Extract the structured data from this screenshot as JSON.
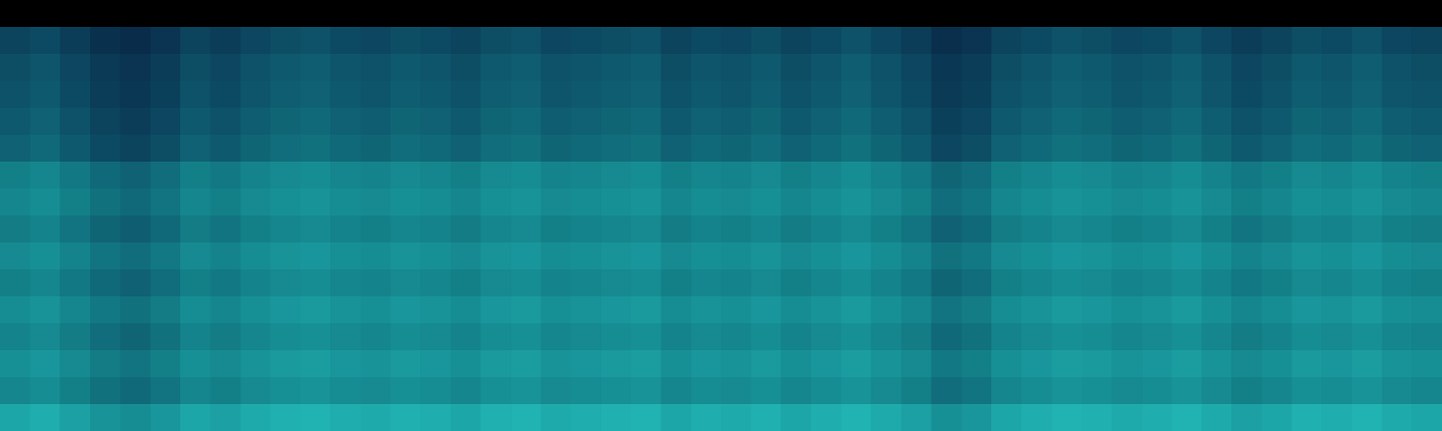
{
  "chart_data": {
    "type": "heatmap",
    "color_range": [
      0,
      100
    ],
    "tick_labels": false,
    "grid": false,
    "cells": [
      [
        0,
        0,
        0,
        0,
        0,
        0,
        0,
        0,
        0,
        0,
        0,
        0,
        0,
        0,
        0,
        0,
        0,
        0,
        0,
        0,
        0,
        0,
        0,
        0,
        0,
        0,
        0,
        0,
        0,
        0,
        0,
        0,
        0,
        0,
        0,
        0,
        0,
        0,
        0,
        0,
        0,
        0,
        0,
        0,
        0,
        0,
        0,
        0
      ],
      [
        44,
        46,
        42,
        38,
        36,
        39,
        44,
        42,
        45,
        47,
        48,
        46,
        45,
        47,
        46,
        44,
        47,
        48,
        45,
        46,
        47,
        48,
        44,
        46,
        45,
        47,
        44,
        46,
        48,
        45,
        42,
        37,
        39,
        44,
        46,
        48,
        47,
        45,
        46,
        48,
        45,
        42,
        44,
        47,
        46,
        48,
        45,
        44
      ],
      [
        47,
        49,
        45,
        41,
        39,
        42,
        47,
        45,
        48,
        50,
        51,
        49,
        48,
        50,
        49,
        47,
        50,
        51,
        48,
        49,
        50,
        51,
        47,
        49,
        48,
        50,
        47,
        49,
        51,
        48,
        45,
        40,
        42,
        47,
        49,
        51,
        50,
        48,
        49,
        51,
        48,
        45,
        47,
        50,
        49,
        51,
        48,
        47
      ],
      [
        48,
        50,
        46,
        42,
        40,
        43,
        48,
        46,
        49,
        51,
        52,
        50,
        49,
        51,
        50,
        48,
        51,
        52,
        49,
        50,
        51,
        52,
        48,
        50,
        49,
        51,
        48,
        50,
        52,
        49,
        46,
        41,
        43,
        48,
        50,
        52,
        51,
        49,
        50,
        52,
        49,
        46,
        48,
        51,
        50,
        52,
        49,
        48
      ],
      [
        50,
        52,
        48,
        44,
        42,
        45,
        50,
        48,
        51,
        53,
        54,
        52,
        51,
        53,
        52,
        50,
        53,
        54,
        51,
        52,
        53,
        54,
        50,
        52,
        51,
        53,
        50,
        52,
        54,
        51,
        48,
        43,
        45,
        50,
        52,
        54,
        53,
        51,
        52,
        54,
        51,
        48,
        50,
        53,
        52,
        54,
        51,
        50
      ],
      [
        52,
        54,
        50,
        46,
        44,
        47,
        52,
        50,
        53,
        55,
        56,
        54,
        53,
        55,
        54,
        52,
        55,
        56,
        53,
        54,
        55,
        56,
        52,
        54,
        53,
        55,
        52,
        54,
        56,
        53,
        50,
        45,
        47,
        52,
        54,
        56,
        55,
        53,
        54,
        56,
        53,
        50,
        52,
        55,
        54,
        56,
        53,
        52
      ],
      [
        60,
        62,
        58,
        54,
        52,
        55,
        60,
        58,
        61,
        63,
        64,
        62,
        61,
        63,
        62,
        60,
        63,
        64,
        61,
        62,
        63,
        64,
        60,
        62,
        61,
        63,
        60,
        62,
        64,
        61,
        58,
        53,
        55,
        60,
        62,
        64,
        63,
        61,
        62,
        64,
        61,
        58,
        60,
        63,
        62,
        64,
        61,
        60
      ],
      [
        62,
        64,
        60,
        56,
        54,
        57,
        62,
        60,
        63,
        65,
        66,
        64,
        63,
        65,
        64,
        62,
        65,
        66,
        63,
        64,
        65,
        66,
        62,
        64,
        63,
        65,
        62,
        64,
        66,
        63,
        60,
        55,
        57,
        62,
        64,
        66,
        65,
        63,
        64,
        66,
        63,
        60,
        62,
        65,
        64,
        66,
        63,
        62
      ],
      [
        59,
        61,
        57,
        53,
        51,
        54,
        59,
        57,
        60,
        62,
        63,
        61,
        60,
        62,
        61,
        59,
        62,
        63,
        60,
        61,
        62,
        63,
        59,
        61,
        60,
        62,
        59,
        61,
        63,
        60,
        57,
        52,
        54,
        59,
        61,
        63,
        62,
        60,
        61,
        63,
        60,
        57,
        59,
        62,
        61,
        63,
        60,
        59
      ],
      [
        63,
        65,
        61,
        57,
        55,
        58,
        63,
        61,
        64,
        66,
        67,
        65,
        64,
        66,
        65,
        63,
        66,
        67,
        64,
        65,
        66,
        67,
        63,
        65,
        64,
        66,
        63,
        65,
        67,
        64,
        61,
        56,
        58,
        63,
        65,
        67,
        66,
        64,
        65,
        67,
        64,
        61,
        63,
        66,
        65,
        67,
        64,
        63
      ],
      [
        60,
        62,
        58,
        54,
        52,
        55,
        60,
        58,
        61,
        63,
        64,
        62,
        61,
        63,
        62,
        60,
        63,
        64,
        61,
        62,
        63,
        64,
        60,
        62,
        61,
        63,
        60,
        62,
        64,
        61,
        58,
        53,
        55,
        60,
        62,
        64,
        63,
        61,
        62,
        64,
        61,
        58,
        60,
        63,
        62,
        64,
        61,
        60
      ],
      [
        64,
        66,
        62,
        58,
        56,
        59,
        64,
        62,
        65,
        67,
        68,
        66,
        65,
        67,
        66,
        64,
        67,
        68,
        65,
        66,
        67,
        68,
        64,
        66,
        65,
        67,
        64,
        66,
        68,
        65,
        62,
        57,
        59,
        64,
        66,
        68,
        67,
        65,
        66,
        68,
        65,
        62,
        64,
        67,
        66,
        68,
        65,
        64
      ],
      [
        61,
        63,
        59,
        55,
        53,
        56,
        61,
        59,
        62,
        64,
        65,
        63,
        62,
        64,
        63,
        61,
        64,
        65,
        62,
        63,
        64,
        65,
        61,
        63,
        62,
        64,
        61,
        63,
        65,
        62,
        59,
        54,
        56,
        61,
        63,
        65,
        64,
        62,
        63,
        65,
        62,
        59,
        61,
        64,
        63,
        65,
        62,
        61
      ],
      [
        65,
        67,
        63,
        59,
        57,
        60,
        65,
        63,
        66,
        68,
        69,
        67,
        66,
        68,
        67,
        65,
        68,
        69,
        66,
        67,
        68,
        69,
        65,
        67,
        66,
        68,
        65,
        67,
        69,
        66,
        63,
        58,
        60,
        65,
        67,
        69,
        68,
        66,
        67,
        69,
        66,
        63,
        65,
        68,
        67,
        69,
        66,
        65
      ],
      [
        62,
        64,
        60,
        56,
        54,
        57,
        62,
        60,
        63,
        65,
        66,
        64,
        63,
        65,
        64,
        62,
        65,
        66,
        63,
        64,
        65,
        66,
        62,
        64,
        63,
        65,
        62,
        64,
        66,
        63,
        60,
        55,
        57,
        62,
        64,
        66,
        65,
        63,
        64,
        66,
        63,
        60,
        62,
        65,
        64,
        66,
        63,
        62
      ],
      [
        72,
        74,
        70,
        66,
        64,
        67,
        72,
        70,
        73,
        75,
        76,
        74,
        73,
        75,
        74,
        72,
        75,
        76,
        73,
        74,
        75,
        76,
        72,
        74,
        73,
        75,
        72,
        74,
        76,
        73,
        70,
        65,
        67,
        72,
        74,
        76,
        75,
        73,
        74,
        76,
        73,
        70,
        72,
        75,
        74,
        76,
        73,
        72
      ]
    ]
  }
}
